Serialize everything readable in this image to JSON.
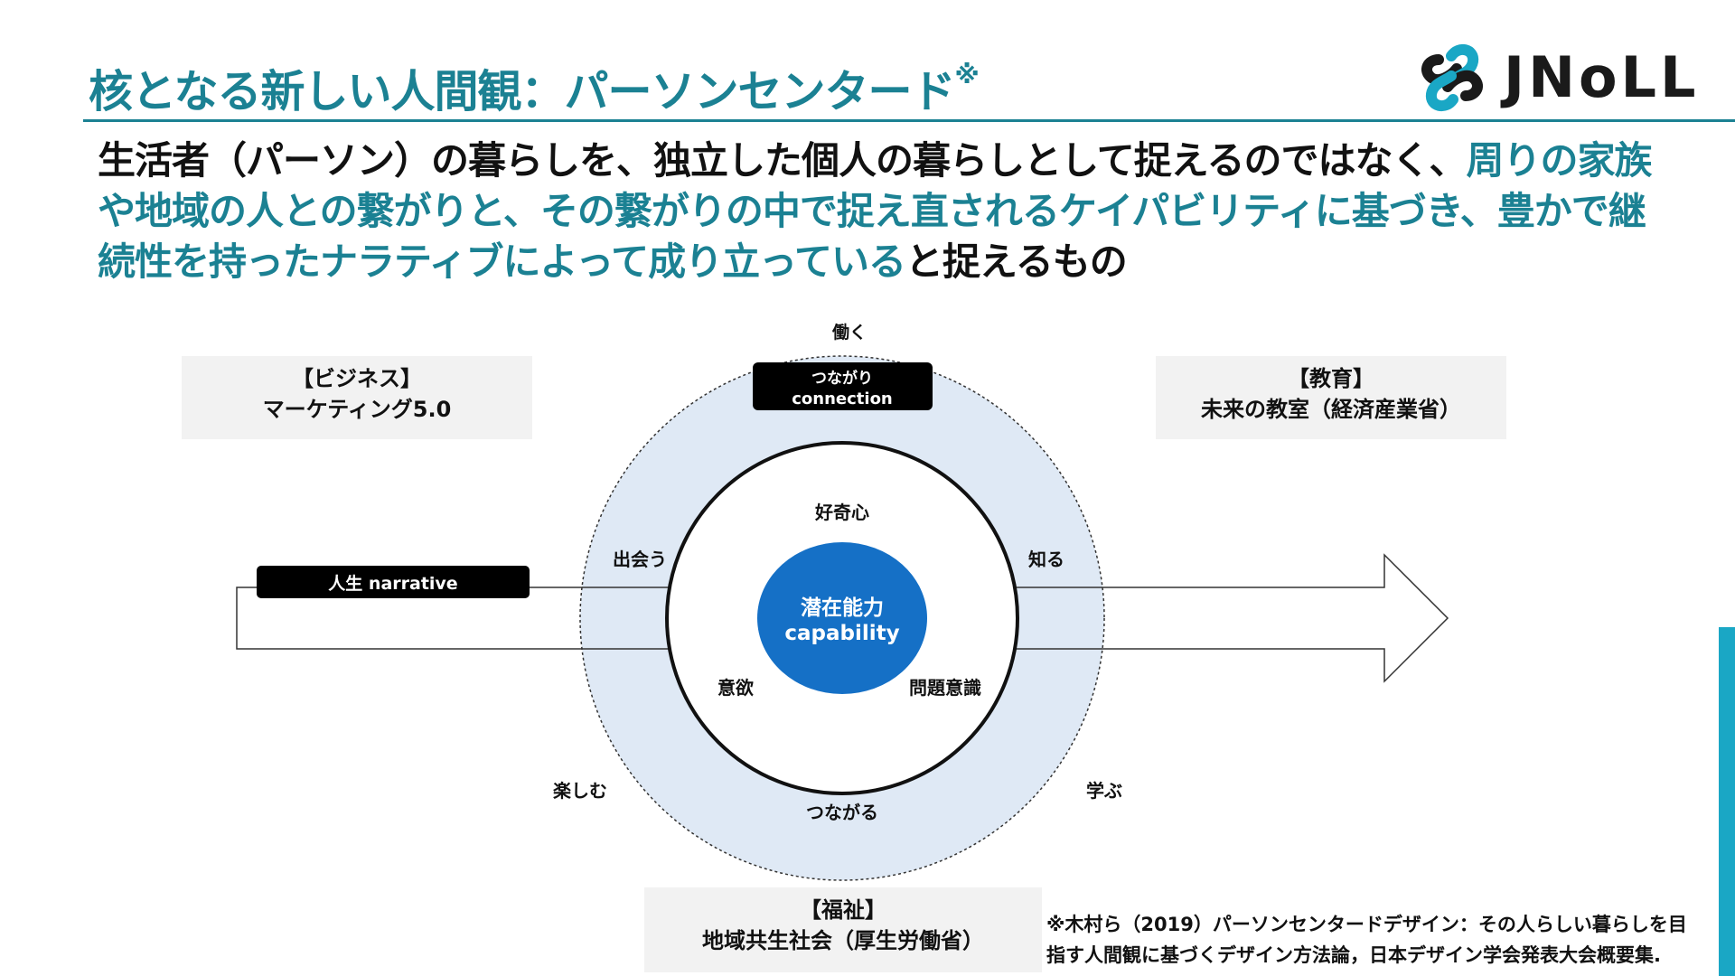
{
  "slide": {
    "title": "核となる新しい人間観：パーソンセンタード",
    "title_mark": "※",
    "logo_text": "JNoLL",
    "lead": {
      "part1": "生活者（パーソン）の暮らしを、独立した個人の暮らしとして捉えるのではなく、",
      "highlight": "周りの家族や地域の人との繋がりと、その繋がりの中で捉え直されるケイパビリティに基づき、豊かで継続性を持ったナラティブによって成り立っている",
      "part2": "と捉えるもの"
    }
  },
  "boxes": {
    "business": {
      "line1": "【ビジネス】",
      "line2": "マーケティング5.0"
    },
    "education": {
      "line1": "【教育】",
      "line2": "未来の教室（経済産業省）"
    },
    "welfare": {
      "line1": "【福祉】",
      "line2": "地域共生社会（厚生労働省）"
    }
  },
  "diagram": {
    "connection_line1": "つながり",
    "connection_line2": "connection",
    "narrative": "人生 narrative",
    "core_line1": "潜在能力",
    "core_line2": "capability",
    "outer_labels": {
      "top": "働く",
      "left": "出会う",
      "right": "知る",
      "bottom_left": "楽しむ",
      "bottom_right": "学ぶ",
      "bottom": "つながる"
    },
    "inner_labels": {
      "top": "好奇心",
      "bottom_left": "意欲",
      "bottom_right": "問題意識"
    },
    "colors": {
      "outer_fill": "#dfe9f5",
      "core_fill": "#1570c6",
      "accent": "#1b8193"
    }
  },
  "footnote": {
    "line1": "※木村ら（2019）パーソンセンタードデザイン：その人らしい暮らしを目",
    "line2": "指す人間観に基づくデザイン方法論，日本デザイン学会発表大会概要集."
  }
}
